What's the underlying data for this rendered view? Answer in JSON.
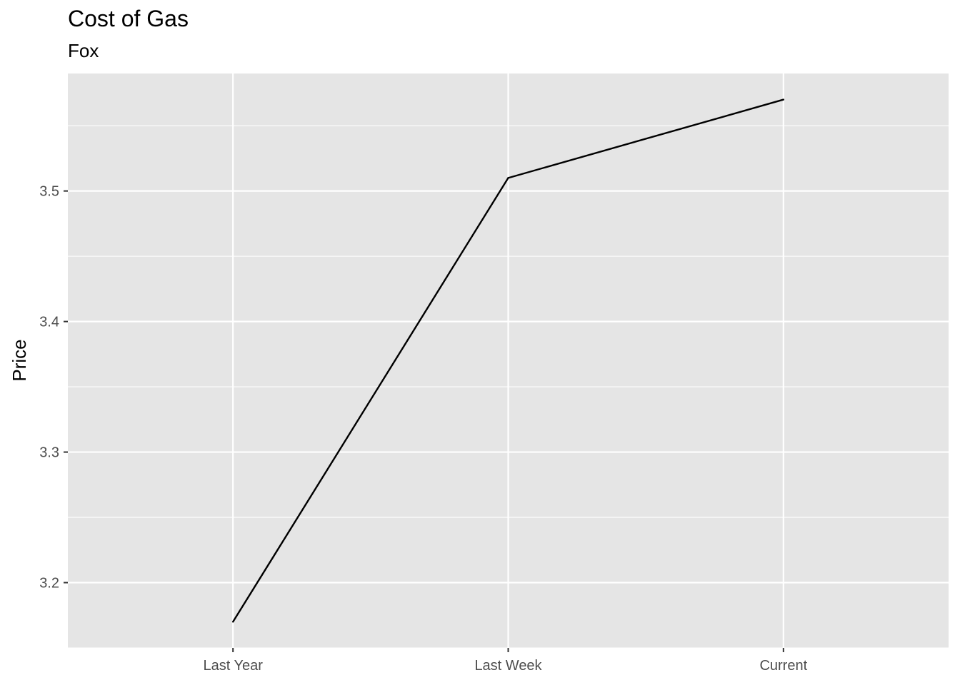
{
  "chart_data": {
    "type": "line",
    "title": "Cost of Gas",
    "subtitle": "Fox",
    "xlabel": "",
    "ylabel": "Price",
    "categories": [
      "Last Year",
      "Last Week",
      "Current"
    ],
    "series": [
      {
        "values": [
          3.17,
          3.51,
          3.57
        ],
        "color": "#000000"
      }
    ],
    "ylim": [
      3.15,
      3.59
    ],
    "yticks": [
      "3.2",
      "3.3",
      "3.4",
      "3.5"
    ],
    "ytick_values": [
      3.2,
      3.3,
      3.4,
      3.5
    ],
    "grid": true,
    "panel_background": "#E5E5E5",
    "grid_color": "#FFFFFF"
  }
}
